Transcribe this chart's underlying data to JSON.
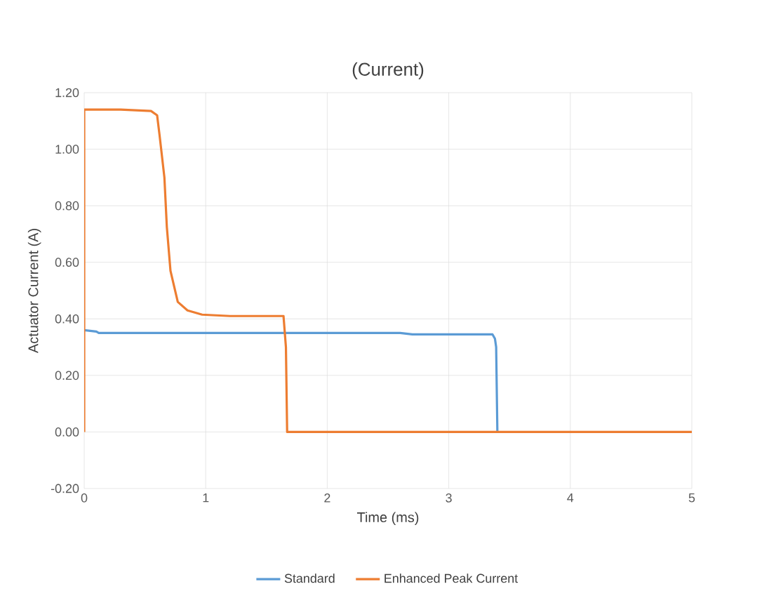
{
  "chart_data": {
    "type": "line",
    "title": "(Current)",
    "xlabel": "Time (ms)",
    "ylabel": "Actuator Current (A)",
    "xlim": [
      0,
      5
    ],
    "xticks": [
      0,
      1,
      2,
      3,
      4,
      5
    ],
    "ylim": [
      -0.2,
      1.2
    ],
    "yticks": [
      {
        "value": -0.2,
        "label": "-0.20"
      },
      {
        "value": 0,
        "label": "0.00"
      },
      {
        "value": 0.2,
        "label": "0.20"
      },
      {
        "value": 0.4,
        "label": "0.40"
      },
      {
        "value": 0.6,
        "label": "0.60"
      },
      {
        "value": 0.8,
        "label": "0.80"
      },
      {
        "value": 1.0,
        "label": "1.00"
      },
      {
        "value": 1.2,
        "label": "1.20"
      }
    ],
    "grid": true,
    "legend": "bottom",
    "marker": "none",
    "line_style": "solid",
    "series": [
      {
        "name": "Standard",
        "color": "#5b9bd5",
        "x": [
          0,
          0.1,
          0.12,
          2.6,
          2.7,
          3.36,
          3.38,
          3.39,
          3.4
        ],
        "values": [
          0.36,
          0.355,
          0.35,
          0.35,
          0.345,
          0.345,
          0.33,
          0.3,
          0
        ]
      },
      {
        "name": "Enhanced Peak Current",
        "color": "#ed7d31",
        "x": [
          0,
          0,
          0.3,
          0.55,
          0.6,
          0.62,
          0.66,
          0.68,
          0.71,
          0.77,
          0.85,
          0.97,
          1.2,
          1.64,
          1.66,
          1.67,
          5
        ],
        "values": [
          0,
          1.14,
          1.14,
          1.135,
          1.12,
          1.05,
          0.9,
          0.725,
          0.57,
          0.46,
          0.43,
          0.415,
          0.41,
          0.41,
          0.3,
          0,
          0
        ]
      }
    ]
  }
}
